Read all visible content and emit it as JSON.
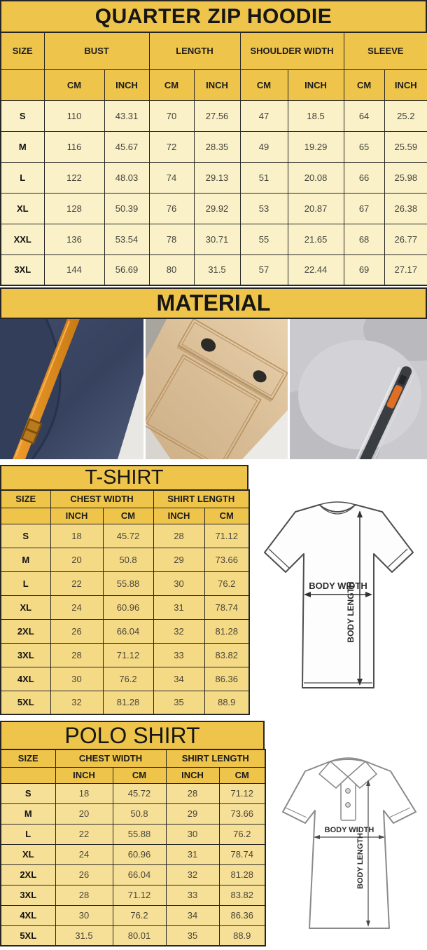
{
  "colors": {
    "header_gold": "#eec44a",
    "hoodie_row_cream": "#faf1c9",
    "shirt_row_gold": "#f5da85",
    "border": "#262626"
  },
  "hoodie_chart": {
    "type": "table",
    "title": "QUARTER ZIP HOODIE",
    "group_headers": {
      "size": "SIZE",
      "bust": "BUST",
      "length": "LENGTH",
      "shoulder_width": "SHOULDER WIDTH",
      "sleeve": "SLEEVE"
    },
    "unit_headers": [
      "CM",
      "INCH",
      "CM",
      "INCH",
      "CM",
      "INCH",
      "CM",
      "INCH"
    ],
    "rows": [
      {
        "size": "S",
        "values": [
          "110",
          "43.31",
          "70",
          "27.56",
          "47",
          "18.5",
          "64",
          "25.2"
        ]
      },
      {
        "size": "M",
        "values": [
          "116",
          "45.67",
          "72",
          "28.35",
          "49",
          "19.29",
          "65",
          "25.59"
        ]
      },
      {
        "size": "L",
        "values": [
          "122",
          "48.03",
          "74",
          "29.13",
          "51",
          "20.08",
          "66",
          "25.98"
        ]
      },
      {
        "size": "XL",
        "values": [
          "128",
          "50.39",
          "76",
          "29.92",
          "53",
          "20.87",
          "67",
          "26.38"
        ]
      },
      {
        "size": "XXL",
        "values": [
          "136",
          "53.54",
          "78",
          "30.71",
          "55",
          "21.65",
          "68",
          "26.77"
        ]
      },
      {
        "size": "3XL",
        "values": [
          "144",
          "56.69",
          "80",
          "31.5",
          "57",
          "22.44",
          "69",
          "27.17"
        ]
      }
    ]
  },
  "material": {
    "title": "MATERIAL",
    "photos": [
      "navy-fleece-with-orange-drawstring-photo",
      "khaki-snap-flap-pocket-photo",
      "gray-fleece-zipper-with-orange-pull-photo"
    ]
  },
  "tshirt_chart": {
    "type": "table",
    "title": "T-SHIRT",
    "group_headers": {
      "size": "SIZE",
      "chest": "CHEST WIDTH",
      "length": "SHIRT LENGTH"
    },
    "unit_headers": [
      "INCH",
      "CM",
      "INCH",
      "CM"
    ],
    "rows": [
      {
        "size": "S",
        "values": [
          "18",
          "45.72",
          "28",
          "71.12"
        ]
      },
      {
        "size": "M",
        "values": [
          "20",
          "50.8",
          "29",
          "73.66"
        ]
      },
      {
        "size": "L",
        "values": [
          "22",
          "55.88",
          "30",
          "76.2"
        ]
      },
      {
        "size": "XL",
        "values": [
          "24",
          "60.96",
          "31",
          "78.74"
        ]
      },
      {
        "size": "2XL",
        "values": [
          "26",
          "66.04",
          "32",
          "81.28"
        ]
      },
      {
        "size": "3XL",
        "values": [
          "28",
          "71.12",
          "33",
          "83.82"
        ]
      },
      {
        "size": "4XL",
        "values": [
          "30",
          "76.2",
          "34",
          "86.36"
        ]
      },
      {
        "size": "5XL",
        "values": [
          "32",
          "81.28",
          "35",
          "88.9"
        ]
      }
    ],
    "diagram_labels": {
      "width": "BODY WIDTH",
      "length": "BODY LENGTH"
    }
  },
  "polo_chart": {
    "type": "table",
    "title": "POLO SHIRT",
    "group_headers": {
      "size": "SIZE",
      "chest": "CHEST WIDTH",
      "length": "SHIRT LENGTH"
    },
    "unit_headers": [
      "INCH",
      "CM",
      "INCH",
      "CM"
    ],
    "rows": [
      {
        "size": "S",
        "values": [
          "18",
          "45.72",
          "28",
          "71.12"
        ]
      },
      {
        "size": "M",
        "values": [
          "20",
          "50.8",
          "29",
          "73.66"
        ]
      },
      {
        "size": "L",
        "values": [
          "22",
          "55.88",
          "30",
          "76.2"
        ]
      },
      {
        "size": "XL",
        "values": [
          "24",
          "60.96",
          "31",
          "78.74"
        ]
      },
      {
        "size": "2XL",
        "values": [
          "26",
          "66.04",
          "32",
          "81.28"
        ]
      },
      {
        "size": "3XL",
        "values": [
          "28",
          "71.12",
          "33",
          "83.82"
        ]
      },
      {
        "size": "4XL",
        "values": [
          "30",
          "76.2",
          "34",
          "86.36"
        ]
      },
      {
        "size": "5XL",
        "values": [
          "31.5",
          "80.01",
          "35",
          "88.9"
        ]
      }
    ],
    "diagram_labels": {
      "width": "BODY WIDTH",
      "length": "BODY LENGTH"
    }
  }
}
